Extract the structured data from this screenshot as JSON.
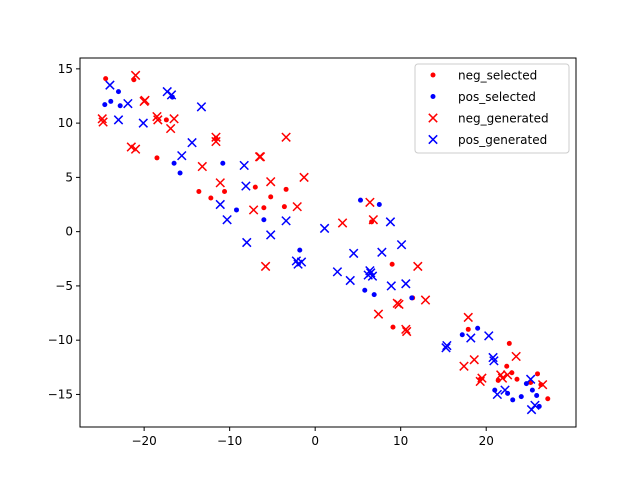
{
  "chart_data": {
    "type": "scatter",
    "title": "",
    "xlabel": "",
    "ylabel": "",
    "xlim": [
      -27.5,
      30.5
    ],
    "ylim": [
      -18,
      16
    ],
    "xticks": [
      -20,
      -10,
      0,
      10,
      20
    ],
    "yticks": [
      -15,
      -10,
      -5,
      0,
      5,
      10,
      15
    ],
    "grid": false,
    "legend_position": "top-right",
    "series": [
      {
        "name": "neg_selected",
        "marker": "dot",
        "color": "#ff0000",
        "points": [
          [
            -24.5,
            14.1
          ],
          [
            -21.2,
            14.0
          ],
          [
            -18.5,
            6.8
          ],
          [
            -17.4,
            10.3
          ],
          [
            -13.6,
            3.7
          ],
          [
            -12.2,
            3.1
          ],
          [
            -10.6,
            3.7
          ],
          [
            -11.6,
            8.6
          ],
          [
            -7.0,
            4.1
          ],
          [
            -6.0,
            2.2
          ],
          [
            -5.2,
            3.2
          ],
          [
            -3.6,
            2.3
          ],
          [
            -3.4,
            3.9
          ],
          [
            6.6,
            0.9
          ],
          [
            9.0,
            -3.0
          ],
          [
            9.1,
            -8.8
          ],
          [
            11.4,
            -6.1
          ],
          [
            17.9,
            -9.0
          ],
          [
            22.7,
            -10.3
          ],
          [
            22.4,
            -12.4
          ],
          [
            23.0,
            -13.0
          ],
          [
            23.6,
            -13.6
          ],
          [
            25.2,
            -13.9
          ],
          [
            26.0,
            -13.1
          ],
          [
            26.4,
            -14.1
          ],
          [
            27.2,
            -15.4
          ],
          [
            19.3,
            -13.6
          ],
          [
            21.4,
            -13.7
          ]
        ]
      },
      {
        "name": "pos_selected",
        "marker": "dot",
        "color": "#0000ff",
        "points": [
          [
            -24.6,
            11.7
          ],
          [
            -23.9,
            12.0
          ],
          [
            -23.0,
            12.9
          ],
          [
            -22.8,
            11.6
          ],
          [
            -16.7,
            12.4
          ],
          [
            -16.5,
            6.3
          ],
          [
            -15.8,
            5.4
          ],
          [
            -10.8,
            6.3
          ],
          [
            -9.2,
            2.0
          ],
          [
            -6.0,
            1.1
          ],
          [
            -1.8,
            -1.7
          ],
          [
            5.3,
            2.9
          ],
          [
            7.5,
            2.5
          ],
          [
            5.8,
            -5.4
          ],
          [
            6.9,
            -5.8
          ],
          [
            11.3,
            -6.1
          ],
          [
            17.2,
            -9.5
          ],
          [
            19.0,
            -8.9
          ],
          [
            21.0,
            -14.6
          ],
          [
            22.5,
            -14.9
          ],
          [
            23.1,
            -15.5
          ],
          [
            24.1,
            -15.2
          ],
          [
            24.7,
            -14.0
          ],
          [
            25.4,
            -14.6
          ],
          [
            25.9,
            -15.1
          ],
          [
            26.2,
            -16.1
          ]
        ]
      },
      {
        "name": "neg_generated",
        "marker": "x",
        "color": "#ff0000",
        "points": [
          [
            -24.9,
            10.4
          ],
          [
            -24.8,
            10.1
          ],
          [
            -21.0,
            14.4
          ],
          [
            -21.5,
            7.8
          ],
          [
            -21.0,
            7.6
          ],
          [
            -20.0,
            12.0
          ],
          [
            -19.9,
            12.1
          ],
          [
            -18.5,
            10.6
          ],
          [
            -18.4,
            10.3
          ],
          [
            -16.9,
            9.5
          ],
          [
            -16.5,
            10.4
          ],
          [
            -13.2,
            6.0
          ],
          [
            -11.6,
            8.7
          ],
          [
            -11.6,
            8.3
          ],
          [
            -11.1,
            4.5
          ],
          [
            -7.2,
            2.0
          ],
          [
            -6.5,
            6.9
          ],
          [
            -6.4,
            6.9
          ],
          [
            -5.8,
            -3.2
          ],
          [
            -5.2,
            4.6
          ],
          [
            -3.4,
            8.7
          ],
          [
            -2.1,
            2.3
          ],
          [
            -1.3,
            5.0
          ],
          [
            3.2,
            0.8
          ],
          [
            6.4,
            2.7
          ],
          [
            6.8,
            1.1
          ],
          [
            7.4,
            -7.6
          ],
          [
            9.6,
            -6.6
          ],
          [
            9.8,
            -6.7
          ],
          [
            10.6,
            -9.0
          ],
          [
            10.7,
            -9.2
          ],
          [
            12.0,
            -3.2
          ],
          [
            12.9,
            -6.3
          ],
          [
            17.4,
            -12.4
          ],
          [
            17.9,
            -7.9
          ],
          [
            18.6,
            -11.8
          ],
          [
            19.3,
            -13.8
          ],
          [
            19.5,
            -13.5
          ],
          [
            21.7,
            -13.2
          ],
          [
            21.9,
            -13.5
          ],
          [
            22.5,
            -13.2
          ],
          [
            23.5,
            -11.5
          ],
          [
            26.6,
            -14.1
          ]
        ]
      },
      {
        "name": "pos_generated",
        "marker": "x",
        "color": "#0000ff",
        "points": [
          [
            -24.0,
            13.5
          ],
          [
            -23.0,
            10.3
          ],
          [
            -21.9,
            11.8
          ],
          [
            -20.1,
            10.0
          ],
          [
            -17.3,
            12.9
          ],
          [
            -16.8,
            12.6
          ],
          [
            -15.6,
            7.0
          ],
          [
            -14.4,
            8.2
          ],
          [
            -13.3,
            11.5
          ],
          [
            -11.1,
            2.5
          ],
          [
            -10.3,
            1.1
          ],
          [
            -8.3,
            6.1
          ],
          [
            -8.1,
            4.2
          ],
          [
            -8.0,
            -1.0
          ],
          [
            -5.2,
            -0.3
          ],
          [
            -3.4,
            1.0
          ],
          [
            -2.2,
            -2.7
          ],
          [
            -2.0,
            -3.0
          ],
          [
            -1.6,
            -2.8
          ],
          [
            1.1,
            0.3
          ],
          [
            2.6,
            -3.7
          ],
          [
            4.1,
            -4.5
          ],
          [
            4.5,
            -2.0
          ],
          [
            6.2,
            -4.0
          ],
          [
            6.4,
            -3.6
          ],
          [
            6.5,
            -3.8
          ],
          [
            6.7,
            -4.1
          ],
          [
            7.8,
            -1.9
          ],
          [
            8.8,
            0.9
          ],
          [
            8.9,
            -5.0
          ],
          [
            10.1,
            -1.2
          ],
          [
            10.6,
            -4.8
          ],
          [
            15.4,
            -10.5
          ],
          [
            15.3,
            -10.7
          ],
          [
            18.2,
            -9.8
          ],
          [
            20.3,
            -9.6
          ],
          [
            20.8,
            -11.6
          ],
          [
            20.9,
            -11.9
          ],
          [
            21.3,
            -15.0
          ],
          [
            22.2,
            -14.6
          ],
          [
            25.2,
            -13.6
          ],
          [
            25.3,
            -16.4
          ],
          [
            25.7,
            -16.0
          ]
        ]
      }
    ]
  }
}
